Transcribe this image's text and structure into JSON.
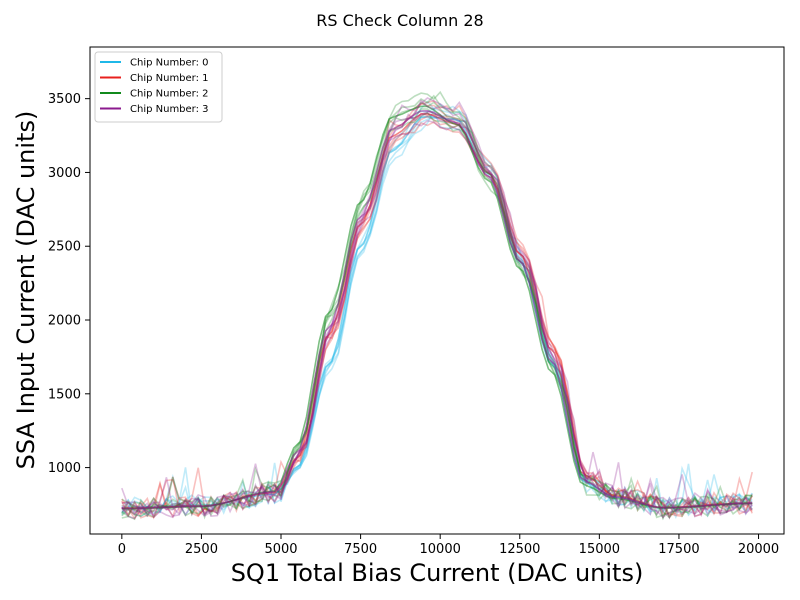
{
  "chart_data": {
    "type": "line",
    "title": "RS Check Column 28",
    "xlabel": "SQ1 Total Bias Current (DAC units)",
    "ylabel": "SSA Input Current (DAC units)",
    "xlim": [
      -1000,
      20800
    ],
    "ylim": [
      550,
      3850
    ],
    "xticks": [
      0,
      2500,
      5000,
      7500,
      10000,
      12500,
      15000,
      17500,
      20000
    ],
    "yticks": [
      1000,
      1500,
      2000,
      2500,
      3000,
      3500
    ],
    "grid": false,
    "legend_position": "top-left",
    "series": [
      {
        "name": "Chip Number: 0",
        "color": "#1fb8e8",
        "x": [
          0,
          2500,
          4800,
          5500,
          6500,
          7500,
          8500,
          9500,
          10500,
          11500,
          12500,
          13500,
          14500,
          15500,
          17000,
          19800
        ],
        "y": [
          730,
          745,
          820,
          1000,
          1700,
          2500,
          3150,
          3380,
          3360,
          3000,
          2400,
          1700,
          900,
          800,
          730,
          760
        ]
      },
      {
        "name": "Chip Number: 1",
        "color": "#e8201e",
        "x": [
          0,
          2500,
          4800,
          5500,
          6500,
          7500,
          8500,
          9500,
          10500,
          11500,
          12500,
          13500,
          14500,
          15500,
          17000,
          19800
        ],
        "y": [
          725,
          740,
          830,
          1060,
          1900,
          2650,
          3250,
          3400,
          3330,
          3000,
          2450,
          1800,
          950,
          810,
          730,
          760
        ]
      },
      {
        "name": "Chip Number: 2",
        "color": "#118a1c",
        "x": [
          0,
          2500,
          4800,
          5500,
          6500,
          7500,
          8500,
          9500,
          10500,
          11500,
          12500,
          13500,
          14500,
          15500,
          17000,
          19800
        ],
        "y": [
          720,
          735,
          840,
          1150,
          2050,
          2800,
          3380,
          3450,
          3330,
          2950,
          2350,
          1650,
          880,
          790,
          725,
          755
        ]
      },
      {
        "name": "Chip Number: 3",
        "color": "#8b1a8e",
        "x": [
          0,
          2500,
          4800,
          5500,
          6500,
          7500,
          8500,
          9500,
          10500,
          11500,
          12500,
          13500,
          14500,
          15500,
          17000,
          19800
        ],
        "y": [
          722,
          738,
          835,
          1100,
          1950,
          2700,
          3300,
          3420,
          3340,
          2980,
          2400,
          1720,
          910,
          800,
          728,
          758
        ]
      }
    ]
  }
}
